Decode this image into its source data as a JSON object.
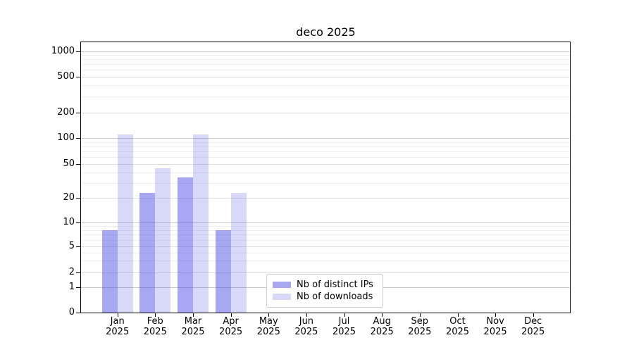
{
  "chart_data": {
    "type": "bar",
    "title": "deco 2025",
    "xlabel": "",
    "ylabel": "",
    "yscale": "symlog",
    "yticks": [
      0,
      1,
      2,
      5,
      10,
      20,
      50,
      100,
      200,
      500,
      1000
    ],
    "ylim": [
      0,
      1250
    ],
    "grid": "on",
    "legend_position": "lower center",
    "year": "2025",
    "months": [
      "Jan",
      "Feb",
      "Mar",
      "Apr",
      "May",
      "Jun",
      "Jul",
      "Aug",
      "Sep",
      "Oct",
      "Nov",
      "Dec"
    ],
    "categories": [
      "Jan 2025",
      "Feb 2025",
      "Mar 2025",
      "Apr 2025",
      "May 2025",
      "Jun 2025",
      "Jul 2025",
      "Aug 2025",
      "Sep 2025",
      "Oct 2025",
      "Nov 2025",
      "Dec 2025"
    ],
    "series": [
      {
        "name": "Nb of distinct IPs",
        "color": "rgba(85,85,230,0.51)",
        "color_hex_on_white": "#a9a9ef",
        "values": [
          8,
          23,
          35,
          8,
          0,
          0,
          0,
          0,
          0,
          0,
          0,
          0
        ]
      },
      {
        "name": "Nb of downloads",
        "color": "rgba(85,85,230,0.23)",
        "color_hex_on_white": "#d8d8f7",
        "values": [
          110,
          45,
          110,
          23,
          0,
          0,
          0,
          0,
          0,
          0,
          0,
          0
        ]
      }
    ]
  }
}
